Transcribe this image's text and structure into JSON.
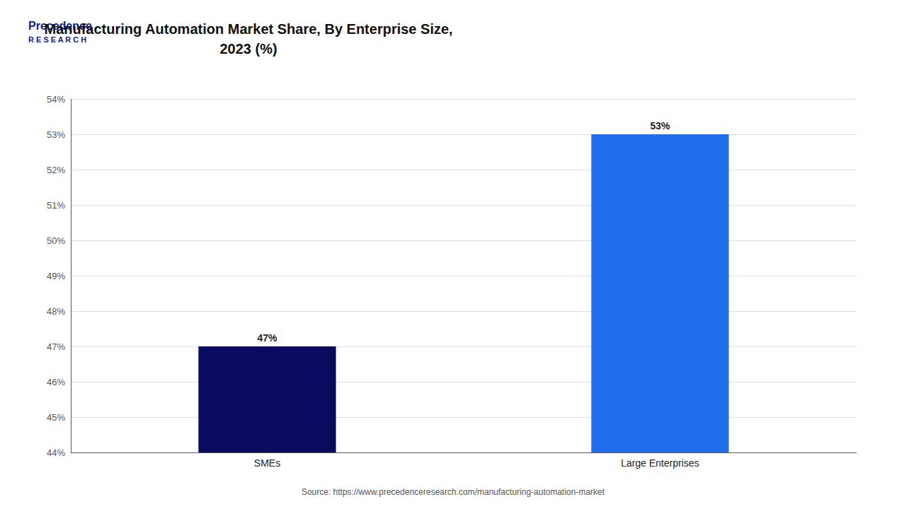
{
  "chart_data": {
    "type": "bar",
    "title": "Manufacturing Automation Market Share, By Enterprise Size,\n2023 (%)",
    "categories": [
      "SMEs",
      "Large Enterprises"
    ],
    "values": [
      47,
      53
    ],
    "value_labels": [
      "47%",
      "53%"
    ],
    "colors": [
      "#0a0a5e",
      "#1e6deb"
    ],
    "ylim": [
      44,
      54
    ],
    "yticks": [
      {
        "value": 44,
        "label": "44%"
      },
      {
        "value": 45,
        "label": "45%"
      },
      {
        "value": 46,
        "label": "46%"
      },
      {
        "value": 47,
        "label": "47%"
      },
      {
        "value": 48,
        "label": "48%"
      },
      {
        "value": 49,
        "label": "49%"
      },
      {
        "value": 50,
        "label": "50%"
      },
      {
        "value": 51,
        "label": "51%"
      },
      {
        "value": 52,
        "label": "52%"
      },
      {
        "value": 53,
        "label": "53%"
      },
      {
        "value": 54,
        "label": "54%"
      }
    ],
    "grid": true,
    "data_labels": true,
    "annotations": [
      "Precedence",
      "R E S E A R C H",
      "Source: https://www.precedenceresearch.com/manufacturing-automation-market"
    ]
  }
}
